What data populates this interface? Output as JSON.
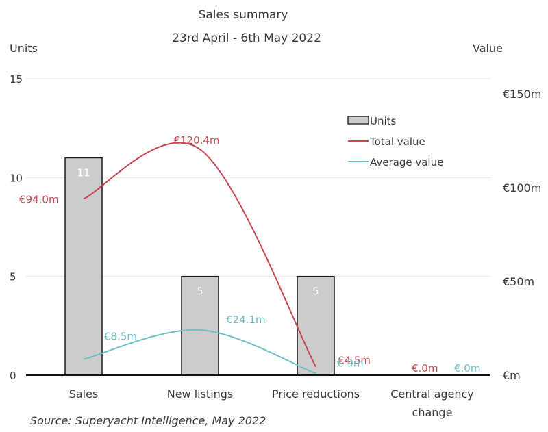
{
  "chart_data": {
    "type": "bar+line",
    "title": "Sales summary",
    "subtitle": "23rd April - 6th May 2022",
    "y_left_label": "Units",
    "y_right_label": "Value",
    "categories": [
      "Sales",
      "New listings",
      "Price reductions",
      "Central agency change"
    ],
    "y_left_ticks": [
      "0",
      "5",
      "10",
      "15"
    ],
    "y_left_lim": [
      0,
      15
    ],
    "y_right_ticks": [
      "€m",
      "€50m",
      "€100m",
      "€150m"
    ],
    "y_right_lim": [
      0,
      160
    ],
    "grid": true,
    "legend_position": "top-right",
    "source": "Source: Superyacht Intelligence, May 2022",
    "series": [
      {
        "name": "Units",
        "kind": "bar",
        "axis": "left",
        "color": "#cccccc",
        "values": [
          11,
          5,
          5,
          0
        ],
        "labels": [
          "11",
          "5",
          "5",
          ""
        ]
      },
      {
        "name": "Total value",
        "kind": "line",
        "axis": "right",
        "color": "#c8464f",
        "values": [
          94.0,
          120.4,
          4.5,
          0
        ],
        "labels": [
          "€94.0m",
          "€120.4m",
          "€4.5m",
          "€.0m"
        ]
      },
      {
        "name": "Average value",
        "kind": "line",
        "axis": "right",
        "color": "#6cbfc3",
        "values": [
          8.5,
          24.1,
          0.9,
          0
        ],
        "labels": [
          "€8.5m",
          "€24.1m",
          "€.9m",
          "€.0m"
        ]
      }
    ]
  }
}
